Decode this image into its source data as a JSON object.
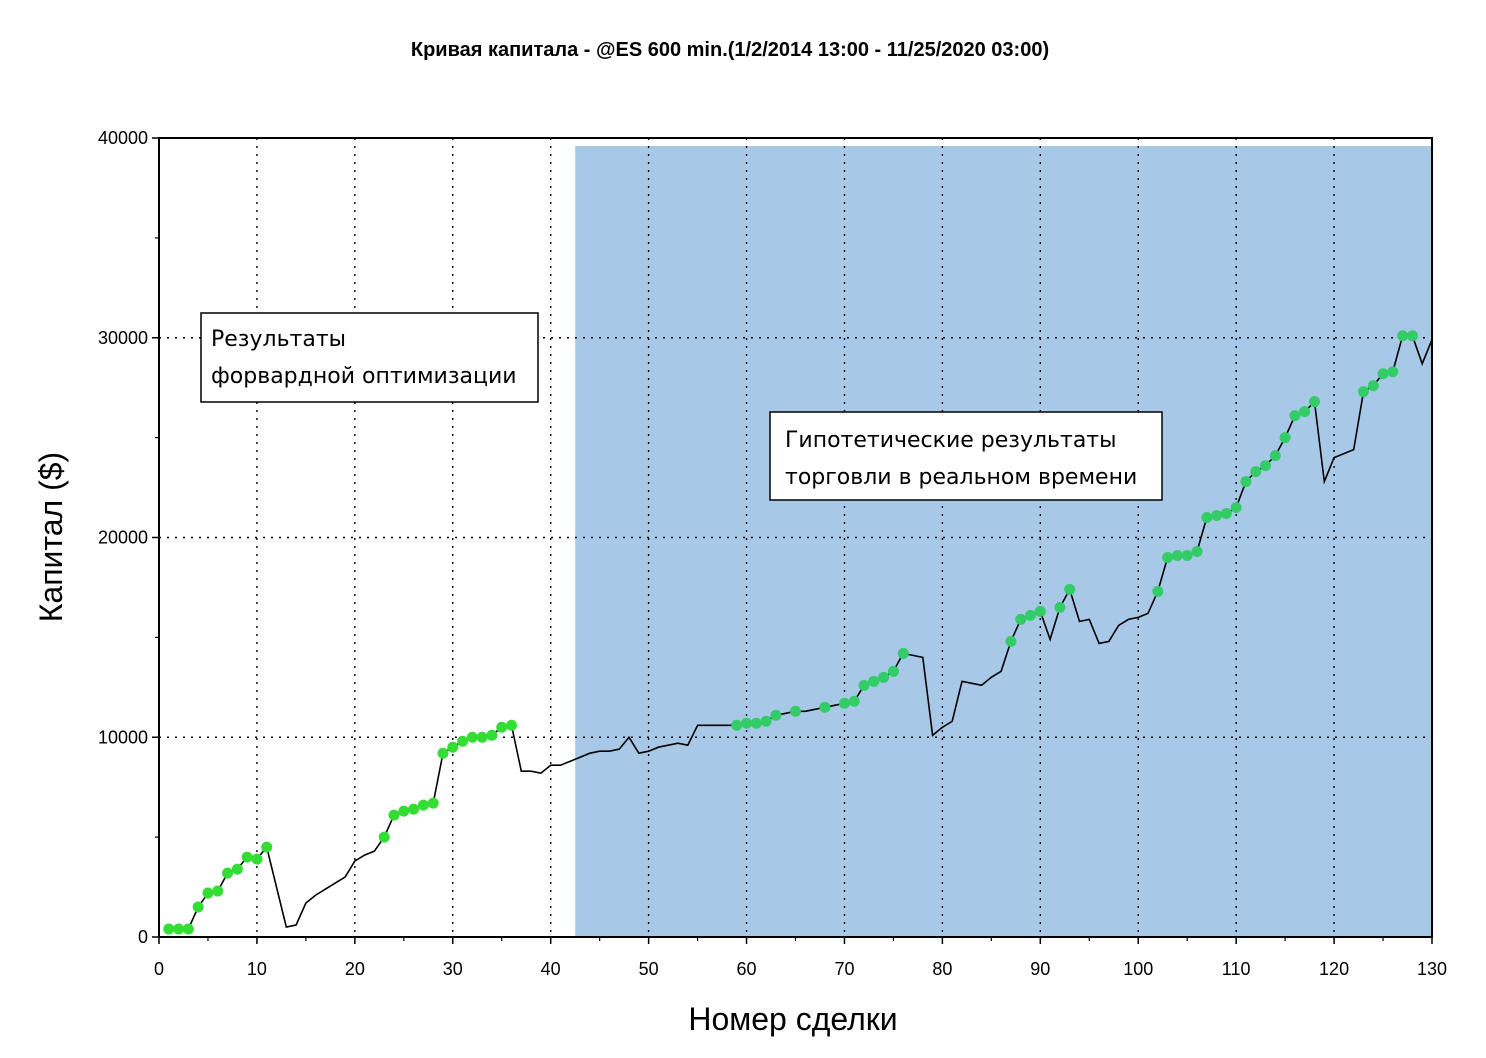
{
  "chart_data": {
    "type": "line",
    "title": "Кривая капитала - @ES 600 min.(1/2/2014 13:00 - 11/25/2020 03:00)",
    "xlabel": "Номер сделки",
    "ylabel": "Капитал ($)",
    "xlim": [
      0,
      130
    ],
    "ylim": [
      0,
      40000
    ],
    "x_ticks": [
      "0",
      "10",
      "20",
      "30",
      "40",
      "50",
      "60",
      "70",
      "80",
      "90",
      "100",
      "110",
      "120",
      "130"
    ],
    "y_ticks": [
      "0",
      "10000",
      "20000",
      "30000",
      "40000"
    ],
    "grid": true,
    "shaded_region": {
      "x_from": 42.5,
      "x_to": 130,
      "color": "#a8c8e8"
    },
    "annotations": [
      {
        "lines": [
          "Результаты",
          "форвардной оптимизации"
        ]
      },
      {
        "lines": [
          "Гипотетические результаты",
          "торговли в реальном времени"
        ]
      }
    ],
    "line_color": "#000000",
    "marker_color_forward": "#33dd33",
    "marker_color_live": "#33cc66",
    "series": [
      {
        "values": [
          [
            1,
            400
          ],
          [
            2,
            400
          ],
          [
            3,
            400
          ],
          [
            4,
            1500
          ],
          [
            5,
            2200
          ],
          [
            6,
            2300
          ],
          [
            7,
            3200
          ],
          [
            8,
            3400
          ],
          [
            9,
            4000
          ],
          [
            10,
            3900
          ],
          [
            11,
            4500
          ],
          [
            12,
            2500
          ],
          [
            13,
            500
          ],
          [
            14,
            600
          ],
          [
            15,
            1700
          ],
          [
            16,
            2100
          ],
          [
            17,
            2400
          ],
          [
            18,
            2700
          ],
          [
            19,
            3000
          ],
          [
            20,
            3800
          ],
          [
            21,
            4100
          ],
          [
            22,
            4300
          ],
          [
            23,
            5000
          ],
          [
            24,
            6100
          ],
          [
            25,
            6300
          ],
          [
            26,
            6400
          ],
          [
            27,
            6600
          ],
          [
            28,
            6700
          ],
          [
            29,
            9200
          ],
          [
            30,
            9500
          ],
          [
            31,
            9800
          ],
          [
            32,
            10000
          ],
          [
            33,
            10000
          ],
          [
            34,
            10100
          ],
          [
            35,
            10500
          ],
          [
            36,
            10600
          ],
          [
            37,
            8300
          ],
          [
            38,
            8300
          ],
          [
            39,
            8200
          ],
          [
            40,
            8600
          ],
          [
            41,
            8600
          ],
          [
            42,
            8800
          ],
          [
            43,
            9000
          ],
          [
            44,
            9200
          ],
          [
            45,
            9300
          ],
          [
            46,
            9300
          ],
          [
            47,
            9400
          ],
          [
            48,
            10000
          ],
          [
            49,
            9200
          ],
          [
            50,
            9300
          ],
          [
            51,
            9500
          ],
          [
            52,
            9600
          ],
          [
            53,
            9700
          ],
          [
            54,
            9600
          ],
          [
            55,
            10600
          ],
          [
            56,
            10600
          ],
          [
            57,
            10600
          ],
          [
            58,
            10600
          ],
          [
            59,
            10600
          ],
          [
            60,
            10700
          ],
          [
            61,
            10700
          ],
          [
            62,
            10800
          ],
          [
            63,
            11100
          ],
          [
            64,
            11200
          ],
          [
            65,
            11300
          ],
          [
            66,
            11300
          ],
          [
            67,
            11400
          ],
          [
            68,
            11500
          ],
          [
            69,
            11600
          ],
          [
            70,
            11700
          ],
          [
            71,
            11800
          ],
          [
            72,
            12600
          ],
          [
            73,
            12800
          ],
          [
            74,
            13000
          ],
          [
            75,
            13300
          ],
          [
            76,
            14200
          ],
          [
            77,
            14100
          ],
          [
            78,
            14000
          ],
          [
            79,
            10100
          ],
          [
            80,
            10500
          ],
          [
            81,
            10800
          ],
          [
            82,
            12800
          ],
          [
            83,
            12700
          ],
          [
            84,
            12600
          ],
          [
            85,
            13000
          ],
          [
            86,
            13300
          ],
          [
            87,
            14800
          ],
          [
            88,
            15900
          ],
          [
            89,
            16100
          ],
          [
            90,
            16300
          ],
          [
            91,
            14900
          ],
          [
            92,
            16500
          ],
          [
            93,
            17400
          ],
          [
            94,
            15800
          ],
          [
            95,
            15900
          ],
          [
            96,
            14700
          ],
          [
            97,
            14800
          ],
          [
            98,
            15600
          ],
          [
            99,
            15900
          ],
          [
            100,
            16000
          ],
          [
            101,
            16200
          ],
          [
            102,
            17300
          ],
          [
            103,
            19000
          ],
          [
            104,
            19100
          ],
          [
            105,
            19100
          ],
          [
            106,
            19300
          ],
          [
            107,
            21000
          ],
          [
            108,
            21100
          ],
          [
            109,
            21200
          ],
          [
            110,
            21500
          ],
          [
            111,
            22800
          ],
          [
            112,
            23300
          ],
          [
            113,
            23600
          ],
          [
            114,
            24100
          ],
          [
            115,
            25000
          ],
          [
            116,
            26100
          ],
          [
            117,
            26300
          ],
          [
            118,
            26800
          ],
          [
            119,
            22800
          ],
          [
            120,
            24000
          ],
          [
            121,
            24200
          ],
          [
            122,
            24400
          ],
          [
            123,
            27300
          ],
          [
            124,
            27600
          ],
          [
            125,
            28200
          ],
          [
            126,
            28300
          ],
          [
            127,
            30100
          ],
          [
            128,
            30100
          ],
          [
            129,
            28700
          ],
          [
            130,
            29900
          ]
        ],
        "marker_x": [
          1,
          2,
          3,
          4,
          5,
          6,
          7,
          8,
          9,
          10,
          11,
          23,
          24,
          25,
          26,
          27,
          28,
          29,
          30,
          31,
          32,
          33,
          34,
          35,
          36,
          59,
          60,
          61,
          62,
          63,
          65,
          68,
          70,
          71,
          72,
          73,
          74,
          75,
          76,
          87,
          88,
          89,
          90,
          92,
          93,
          102,
          103,
          104,
          105,
          106,
          107,
          108,
          109,
          110,
          111,
          112,
          113,
          114,
          115,
          116,
          117,
          118,
          123,
          124,
          125,
          126,
          127,
          128
        ]
      }
    ]
  }
}
